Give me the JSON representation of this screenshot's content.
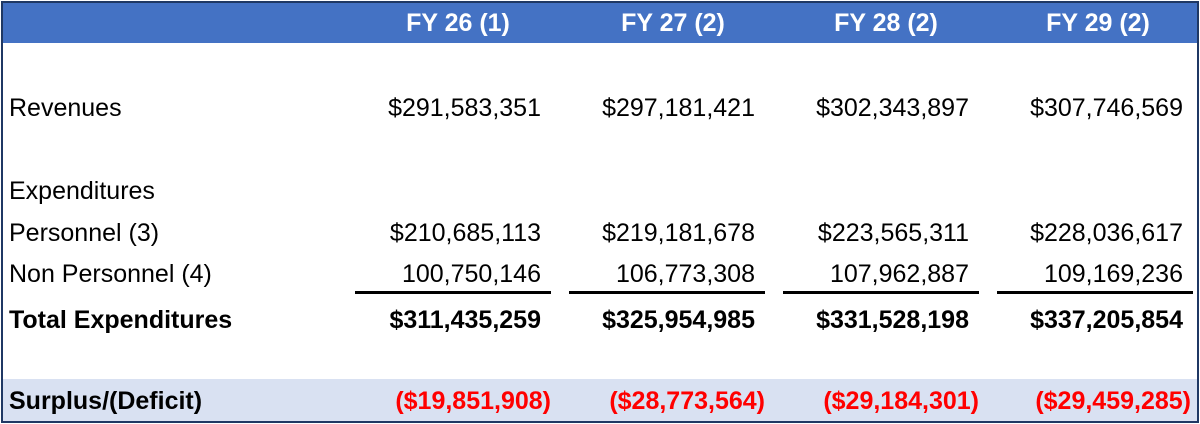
{
  "header": {
    "columns": [
      "FY 26 (1)",
      "FY 27 (2)",
      "FY 28 (2)",
      "FY 29 (2)"
    ]
  },
  "rows": {
    "revenues": {
      "label": "Revenues",
      "values": [
        "$291,583,351",
        "$297,181,421",
        "$302,343,897",
        "$307,746,569"
      ]
    },
    "expenditures_heading": {
      "label": "Expenditures"
    },
    "personnel": {
      "label": "Personnel (3)",
      "values": [
        "$210,685,113",
        "$219,181,678",
        "$223,565,311",
        "$228,036,617"
      ]
    },
    "non_personnel": {
      "label": "Non Personnel (4)",
      "values": [
        "100,750,146",
        "106,773,308",
        "107,962,887",
        "109,169,236"
      ]
    },
    "total_expenditures": {
      "label": "Total Expenditures",
      "values": [
        "$311,435,259",
        "$325,954,985",
        "$331,528,198",
        "$337,205,854"
      ]
    },
    "surplus_deficit": {
      "label": "Surplus/(Deficit)",
      "values": [
        "($19,851,908)",
        "($28,773,564)",
        "($29,184,301)",
        "($29,459,285)"
      ]
    }
  },
  "colors": {
    "header_bg": "#4472c4",
    "header_text": "#ffffff",
    "surplus_band": "#d9e1f2",
    "deficit_text": "#ff0000",
    "border": "#1f3864"
  }
}
